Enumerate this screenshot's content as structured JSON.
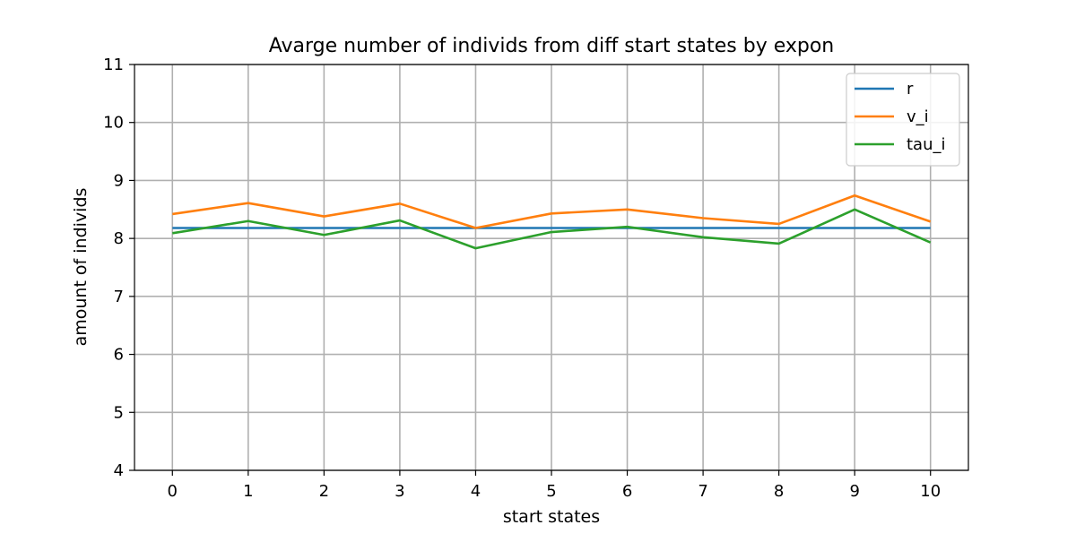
{
  "chart_data": {
    "type": "line",
    "title": "Avarge number of individs from diff start states by expon",
    "xlabel": "start states",
    "ylabel": "amount of individs",
    "x": [
      0,
      1,
      2,
      3,
      4,
      5,
      6,
      7,
      8,
      9,
      10
    ],
    "xlim": [
      -0.5,
      10.5
    ],
    "ylim": [
      4,
      11
    ],
    "xticks": [
      0,
      1,
      2,
      3,
      4,
      5,
      6,
      7,
      8,
      9,
      10
    ],
    "yticks": [
      4,
      5,
      6,
      7,
      8,
      9,
      10,
      11
    ],
    "grid": true,
    "legend_position": "top-right",
    "series": [
      {
        "name": "r",
        "color": "#1f77b4",
        "values": [
          8.18,
          8.18,
          8.18,
          8.18,
          8.18,
          8.18,
          8.18,
          8.18,
          8.18,
          8.18,
          8.18
        ]
      },
      {
        "name": "v_i",
        "color": "#ff7f0e",
        "values": [
          8.42,
          8.61,
          8.38,
          8.6,
          8.18,
          8.43,
          8.5,
          8.35,
          8.25,
          8.74,
          8.29
        ]
      },
      {
        "name": "tau_i",
        "color": "#2ca02c",
        "values": [
          8.09,
          8.3,
          8.06,
          8.31,
          7.83,
          8.11,
          8.2,
          8.02,
          7.91,
          8.5,
          7.93
        ]
      }
    ]
  }
}
